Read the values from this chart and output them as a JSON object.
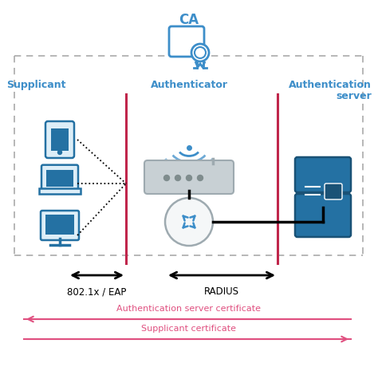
{
  "bg_color": "#ffffff",
  "title_ca": "CA",
  "label_supplicant": "Supplicant",
  "label_authenticator": "Authenticator",
  "label_auth_server_line1": "Authentication",
  "label_auth_server_line2": "server",
  "label_eap": "802.1x / EAP",
  "label_radius": "RADIUS",
  "label_cert1": "Authentication server certificate",
  "label_cert2": "Supplicant certificate",
  "cyan_blue": "#3d8ec9",
  "dark_blue": "#1a5276",
  "mid_blue": "#3d8ec9",
  "device_fill": "#2471a3",
  "red_line": "#c0264b",
  "cert_color1": "#e05080",
  "cert_color2": "#e05080",
  "black": "#000000",
  "dashed_box_color": "#aaaaaa",
  "router_gray": "#9eaab0",
  "router_body": "#c8d0d4",
  "switch_border": "#9eaab0",
  "switch_bg": "#f5f7f8"
}
